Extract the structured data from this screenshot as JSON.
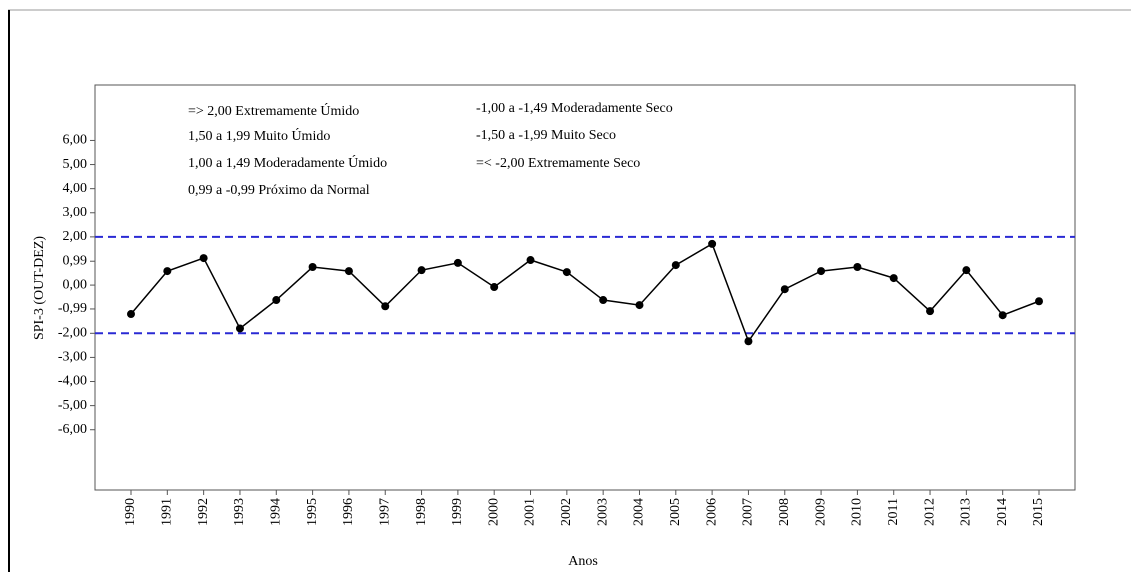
{
  "chart_data": {
    "type": "line",
    "x_label": "Anos",
    "y_label": "SPI-3 (OUT-DEZ)",
    "annotations": [
      "=> 2,00 Extremamente Úmido",
      "1,50 a 1,99 Muito Úmido",
      "1,00 a 1,49 Moderadamente Úmido",
      "0,99 a -0,99 Próximo da Normal",
      "-1,00 a -1,49 Moderadamente Seco",
      "-1,50 a -1,99 Muito Seco",
      "=< -2,00 Extremamente Seco"
    ],
    "categories": [
      "1990",
      "1991",
      "1992",
      "1993",
      "1994",
      "1995",
      "1996",
      "1997",
      "1998",
      "1999",
      "2000",
      "2001",
      "2002",
      "2003",
      "2004",
      "2005",
      "2006",
      "2007",
      "2008",
      "2009",
      "2010",
      "2011",
      "2012",
      "2013",
      "2014",
      "2015"
    ],
    "series": [
      {
        "color": "#000000",
        "values": [
          -1.2,
          0.58,
          1.12,
          -1.8,
          -0.62,
          0.75,
          0.58,
          -0.88,
          0.62,
          0.92,
          -0.08,
          1.04,
          0.54,
          -0.62,
          -0.83,
          0.83,
          1.71,
          -2.33,
          -0.17,
          0.58,
          0.75,
          0.29,
          -1.08,
          0.62,
          -1.25,
          -0.67
        ]
      }
    ],
    "reference_lines": [
      2,
      -2
    ],
    "reference_color": "#2a2ad4",
    "ylim": [
      -8.5,
      8.3
    ],
    "yticks": [
      {
        "value": 6,
        "label": "6,00"
      },
      {
        "value": 5,
        "label": "5,00"
      },
      {
        "value": 4,
        "label": "4,00"
      },
      {
        "value": 3,
        "label": "3,00"
      },
      {
        "value": 2,
        "label": "2,00"
      },
      {
        "value": 0.99,
        "label": "0,99"
      },
      {
        "value": 0,
        "label": "0,00"
      },
      {
        "value": -0.99,
        "label": "-0,99"
      },
      {
        "value": -2,
        "label": "-2,00"
      },
      {
        "value": -3,
        "label": "-3,00"
      },
      {
        "value": -4,
        "label": "-4,00"
      },
      {
        "value": -5,
        "label": "-5,00"
      },
      {
        "value": -6,
        "label": "-6,00"
      }
    ]
  }
}
